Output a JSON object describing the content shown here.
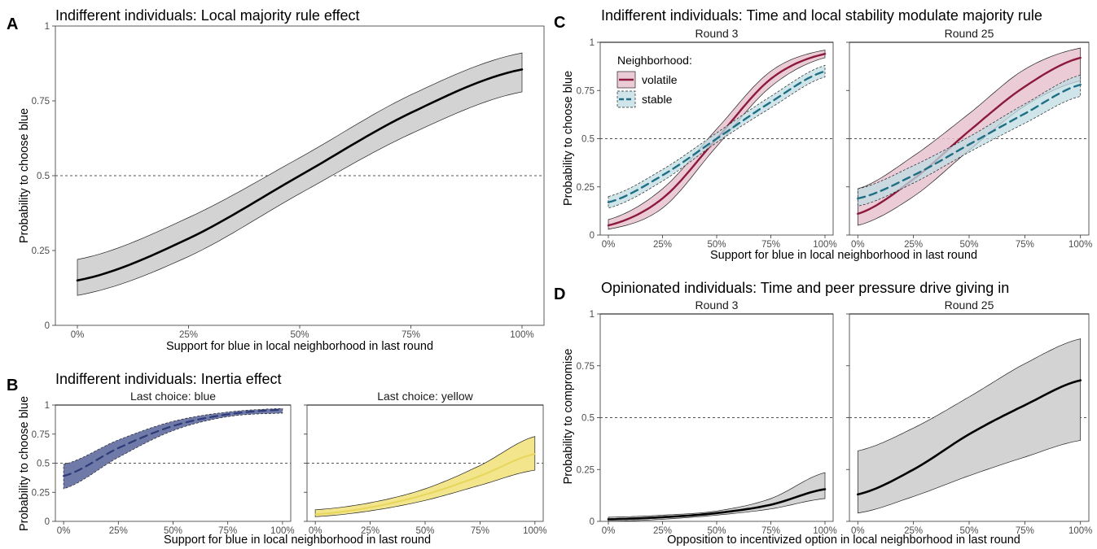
{
  "panels": {
    "A": {
      "tag": "A",
      "title": "Indifferent individuals: Local majority rule effect",
      "xlabel": "Support for blue in local neighborhood in last round",
      "ylabel": "Probability to choose blue"
    },
    "B": {
      "tag": "B",
      "title": "Indifferent individuals: Inertia effect",
      "xlabel": "Support for blue in local neighborhood in last round",
      "ylabel": "Probability to choose blue"
    },
    "C": {
      "tag": "C",
      "title": "Indifferent individuals: Time and local stability modulate majority rule",
      "xlabel": "Support for blue in local neighborhood in last round",
      "ylabel": "Probability to choose blue",
      "legend_title": "Neighborhood:"
    },
    "D": {
      "tag": "D",
      "title": "Opinionated individuals: Time and peer pressure drive giving in",
      "xlabel": "Opposition to incentivized option in local neighborhood in last round",
      "ylabel": "Probability to compromise"
    }
  },
  "colors": {
    "grey_band": "#d3d3d3",
    "blue_band": "#6f7aa8",
    "blue_line": "#2f3a78",
    "yellow_band": "#f2e58c",
    "yellow_line": "#e8d65c",
    "volatile_band": "#e7c3cf",
    "volatile_line": "#8b1a3d",
    "stable_band": "#bfdce3",
    "stable_line": "#1f6f84"
  },
  "chart_data": [
    {
      "id": "A",
      "type": "line",
      "title": "Indifferent individuals: Local majority rule effect",
      "xlabel": "Support for blue in local neighborhood in last round",
      "ylabel": "Probability to choose blue",
      "xlim": [
        0,
        1
      ],
      "ylim": [
        0,
        1
      ],
      "x_ticks": [
        "0%",
        "25%",
        "50%",
        "75%",
        "100%"
      ],
      "y_ticks": [
        "0",
        "0.25",
        "0.5",
        "0.75",
        "1"
      ],
      "reference_line": 0.5,
      "series": [
        {
          "x": [
            0,
            0.25,
            0.5,
            0.75,
            1
          ],
          "y": [
            0.15,
            0.29,
            0.5,
            0.71,
            0.855
          ],
          "lower": [
            0.1,
            0.23,
            0.44,
            0.64,
            0.78
          ],
          "upper": [
            0.22,
            0.36,
            0.56,
            0.77,
            0.91
          ]
        }
      ]
    },
    {
      "id": "B",
      "type": "line",
      "title": "Indifferent individuals: Inertia effect",
      "xlabel": "Support for blue in local neighborhood in last round",
      "ylabel": "Probability to choose blue",
      "xlim": [
        0,
        1
      ],
      "ylim": [
        0,
        1
      ],
      "x_ticks": [
        "0%",
        "25%",
        "50%",
        "75%",
        "100%"
      ],
      "y_ticks": [
        "0",
        "0.25",
        "0.5",
        "0.75",
        "1"
      ],
      "reference_line": 0.5,
      "facets": [
        {
          "strip": "Last choice: blue",
          "series": [
            {
              "x": [
                0,
                0.25,
                0.5,
                0.75,
                1
              ],
              "y": [
                0.39,
                0.63,
                0.82,
                0.92,
                0.96
              ],
              "lower": [
                0.28,
                0.55,
                0.78,
                0.9,
                0.93
              ],
              "upper": [
                0.49,
                0.7,
                0.86,
                0.94,
                0.97
              ]
            }
          ]
        },
        {
          "strip": "Last choice: yellow",
          "series": [
            {
              "x": [
                0,
                0.25,
                0.5,
                0.75,
                1
              ],
              "y": [
                0.06,
                0.12,
                0.23,
                0.39,
                0.58
              ],
              "lower": [
                0.04,
                0.09,
                0.18,
                0.31,
                0.44
              ],
              "upper": [
                0.1,
                0.16,
                0.28,
                0.48,
                0.73
              ]
            }
          ]
        }
      ]
    },
    {
      "id": "C",
      "type": "line",
      "title": "Indifferent individuals: Time and local stability modulate majority rule",
      "xlabel": "Support for blue in local neighborhood in last round",
      "ylabel": "Probability to choose blue",
      "xlim": [
        0,
        1
      ],
      "ylim": [
        0,
        1
      ],
      "x_ticks": [
        "0%",
        "25%",
        "50%",
        "75%",
        "100%"
      ],
      "y_ticks": [
        "0",
        "0.25",
        "0.5",
        "0.75",
        "1"
      ],
      "reference_line": 0.5,
      "legend": {
        "title": "Neighborhood:",
        "position": "top-left"
      },
      "facets": [
        {
          "strip": "Round 3",
          "series": [
            {
              "name": "volatile",
              "x": [
                0,
                0.25,
                0.5,
                0.75,
                1
              ],
              "y": [
                0.05,
                0.19,
                0.5,
                0.81,
                0.94
              ],
              "lower": [
                0.03,
                0.14,
                0.46,
                0.77,
                0.92
              ],
              "upper": [
                0.08,
                0.24,
                0.55,
                0.85,
                0.96
              ]
            },
            {
              "name": "stable",
              "x": [
                0,
                0.25,
                0.5,
                0.75,
                1
              ],
              "y": [
                0.17,
                0.31,
                0.5,
                0.69,
                0.85
              ],
              "lower": [
                0.14,
                0.28,
                0.48,
                0.66,
                0.82
              ],
              "upper": [
                0.2,
                0.34,
                0.53,
                0.72,
                0.88
              ]
            }
          ]
        },
        {
          "strip": "Round 25",
          "series": [
            {
              "name": "volatile",
              "x": [
                0,
                0.25,
                0.5,
                0.75,
                1
              ],
              "y": [
                0.11,
                0.29,
                0.54,
                0.77,
                0.92
              ],
              "lower": [
                0.05,
                0.2,
                0.44,
                0.67,
                0.8
              ],
              "upper": [
                0.24,
                0.41,
                0.63,
                0.86,
                0.97
              ]
            },
            {
              "name": "stable",
              "x": [
                0,
                0.25,
                0.5,
                0.75,
                1
              ],
              "y": [
                0.19,
                0.31,
                0.47,
                0.63,
                0.78
              ],
              "lower": [
                0.15,
                0.27,
                0.43,
                0.58,
                0.72
              ],
              "upper": [
                0.24,
                0.36,
                0.51,
                0.68,
                0.83
              ]
            }
          ]
        }
      ]
    },
    {
      "id": "D",
      "type": "line",
      "title": "Opinionated individuals: Time and peer pressure drive giving in",
      "xlabel": "Opposition to incentivized option in local neighborhood in last round",
      "ylabel": "Probability to compromise",
      "xlim": [
        0,
        1
      ],
      "ylim": [
        0,
        1
      ],
      "x_ticks": [
        "0%",
        "25%",
        "50%",
        "75%",
        "100%"
      ],
      "y_ticks": [
        "0",
        "0.25",
        "0.5",
        "0.75",
        "1"
      ],
      "reference_line": 0.5,
      "facets": [
        {
          "strip": "Round 3",
          "series": [
            {
              "x": [
                0,
                0.25,
                0.5,
                0.75,
                1
              ],
              "y": [
                0.01,
                0.02,
                0.04,
                0.08,
                0.155
              ],
              "lower": [
                0.0,
                0.01,
                0.03,
                0.06,
                0.11
              ],
              "upper": [
                0.02,
                0.03,
                0.05,
                0.11,
                0.235
              ]
            }
          ]
        },
        {
          "strip": "Round 25",
          "series": [
            {
              "x": [
                0,
                0.25,
                0.5,
                0.75,
                1
              ],
              "y": [
                0.13,
                0.25,
                0.42,
                0.56,
                0.68
              ],
              "lower": [
                0.04,
                0.12,
                0.22,
                0.31,
                0.39
              ],
              "upper": [
                0.34,
                0.45,
                0.6,
                0.76,
                0.88
              ]
            }
          ]
        }
      ]
    }
  ]
}
